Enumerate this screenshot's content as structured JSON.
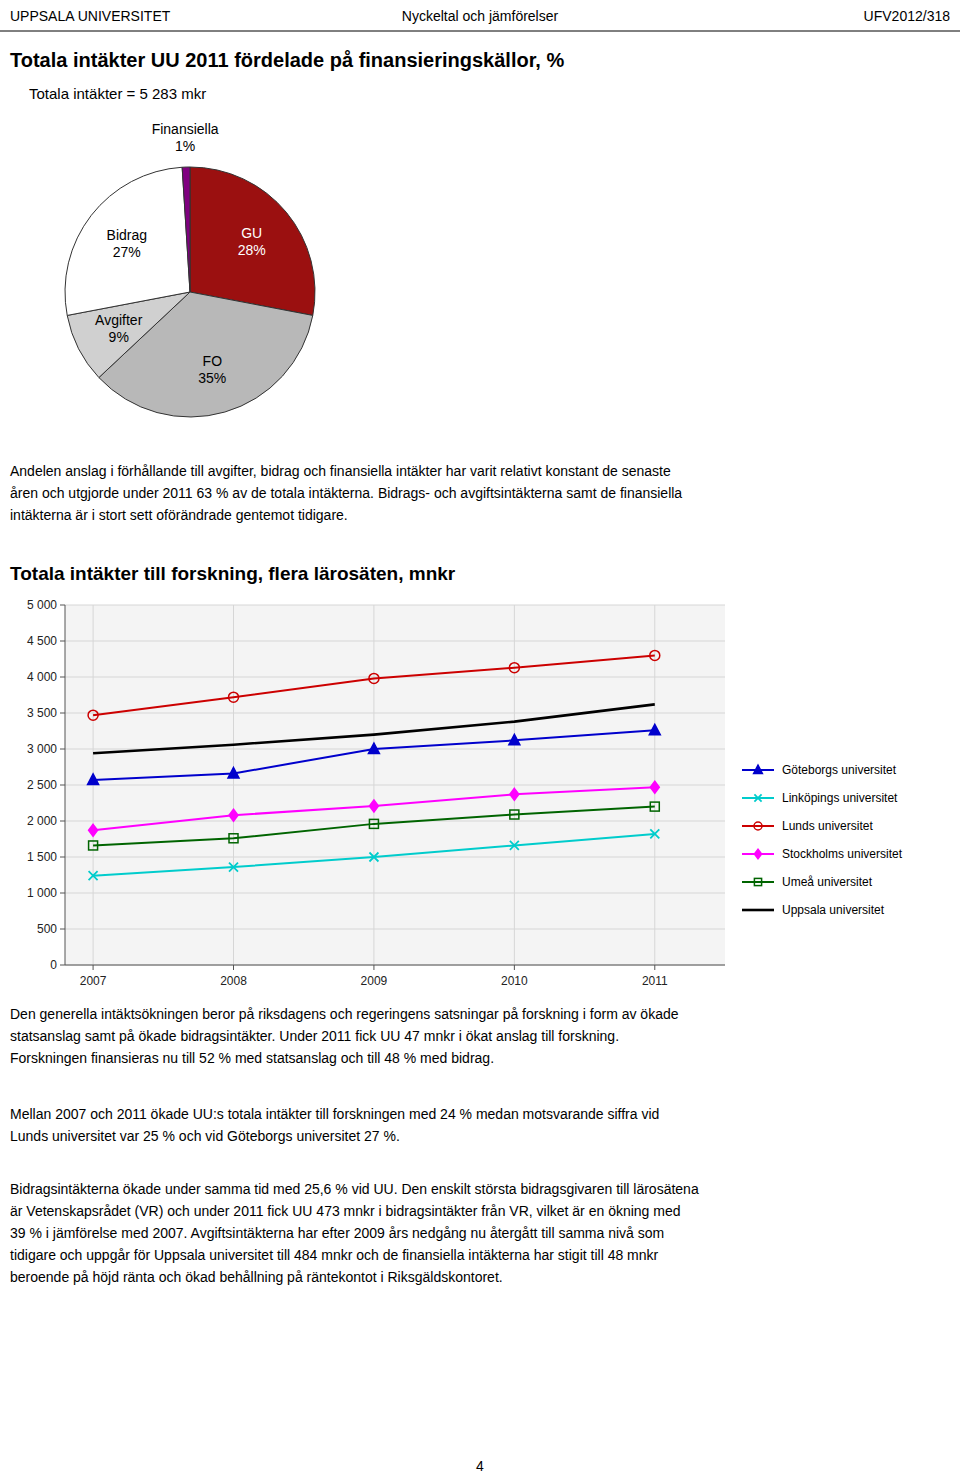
{
  "page": {
    "header_left": "UPPSALA UNIVERSITET",
    "header_center": "Nyckeltal och jämförelser",
    "header_right": "UFV2012/318",
    "paragraphs": [
      [
        "Andelen anslag i förhållande till avgifter, bidrag och finansiella intäkter har varit relativt konstant de senaste",
        "åren och utgjorde under 2011 63 % av de totala intäkterna. Bidrags- och avgiftsintäkterna samt de finansiella",
        "intäkterna är i stort sett oförändrade gentemot tidigare."
      ],
      [
        "Den generella intäktsökningen beror på riksdagens och regeringens satsningar på forskning i form av ökade",
        "statsanslag samt på ökade bidragsintäkter. Under 2011 fick UU 47 mnkr i ökat anslag till forskning.",
        "Forskningen finansieras nu till 52 % med statsanslag och till 48 % med bidrag."
      ],
      [
        "Mellan 2007 och 2011 ökade UU:s totala intäkter till forskningen med 24 % medan motsvarande siffra vid",
        "Lunds universitet var 25 % och vid Göteborgs universitet 27 %."
      ],
      [
        "Bidragsintäkterna ökade under samma tid med 25,6 % vid UU. Den enskilt största bidragsgivaren till lärosätena",
        "är Vetenskapsrådet (VR) och under 2011 fick UU 473 mnkr i bidragsintäkter från VR, vilket är en ökning med",
        "39 % i jämförelse med 2007. Avgiftsintäkterna har efter 2009 års nedgång nu återgått till samma nivå som",
        "tidigare och uppgår för Uppsala universitet till 484 mnkr och de finansiella intäkterna har stigit till 48 mnkr",
        "beroende på höjd ränta och ökad behållning på räntekontot i Riksgäldskontoret."
      ]
    ],
    "footer": "4"
  },
  "chart_data": [
    {
      "type": "pie",
      "title": "Totala intäkter UU 2011 fördelade på finansieringskällor, %",
      "subtitle": "Totala intäkter = 5 283 mkr",
      "categories": [
        "GU",
        "FO",
        "Avgifter",
        "Bidrag",
        "Finansiella"
      ],
      "values": [
        28,
        35,
        9,
        27,
        1
      ],
      "value_labels": [
        "28%",
        "35%",
        "9%",
        "27%",
        "1%"
      ],
      "colors": [
        "#9B1010",
        "#B8B8B8",
        "#D0D0D0",
        "#FFFFFF",
        "#800080"
      ],
      "data_labels": true
    },
    {
      "type": "line",
      "title": "Totala intäkter till forskning, flera lärosäten, mnkr",
      "x": [
        2007,
        2008,
        2009,
        2010,
        2011
      ],
      "xlim": [
        2006.8,
        2011.5
      ],
      "xticks": [
        2007,
        2008,
        2009,
        2010,
        2011
      ],
      "ylim": [
        0,
        5000
      ],
      "yticks": [
        0,
        500,
        {
          "value": 1000,
          "label": "1 000"
        },
        {
          "value": 1500,
          "label": "1 500"
        },
        {
          "value": 2000,
          "label": "2 000"
        },
        {
          "value": 2500,
          "label": "2 500"
        },
        {
          "value": 3000,
          "label": "3 000"
        },
        {
          "value": 3500,
          "label": "3 500"
        },
        {
          "value": 4000,
          "label": "4 000"
        },
        {
          "value": 4500,
          "label": "4 500"
        },
        {
          "value": 5000,
          "label": "5 000"
        }
      ],
      "grid": true,
      "legend": "right",
      "series": [
        {
          "name": "Göteborgs universitet",
          "color": "#0000CC",
          "marker": "triangle",
          "values": [
            2570,
            2660,
            3000,
            3120,
            3260
          ]
        },
        {
          "name": "Linköpings universitet",
          "color": "#00CCCC",
          "marker": "x",
          "values": [
            1240,
            1360,
            1500,
            1660,
            1820
          ]
        },
        {
          "name": "Lunds universitet",
          "color": "#CC0000",
          "marker": "circle-open",
          "values": [
            3470,
            3720,
            3980,
            4130,
            4300
          ]
        },
        {
          "name": "Stockholms universitet",
          "color": "#FF00FF",
          "marker": "diamond",
          "values": [
            1870,
            2080,
            2210,
            2370,
            2470
          ]
        },
        {
          "name": "Umeå universitet",
          "color": "#006400",
          "marker": "square-open",
          "values": [
            1660,
            1760,
            1960,
            2090,
            2200
          ]
        },
        {
          "name": "Uppsala universitet",
          "color": "#000000",
          "marker": "none",
          "values": [
            2940,
            3060,
            3200,
            3380,
            3620
          ]
        }
      ]
    }
  ]
}
